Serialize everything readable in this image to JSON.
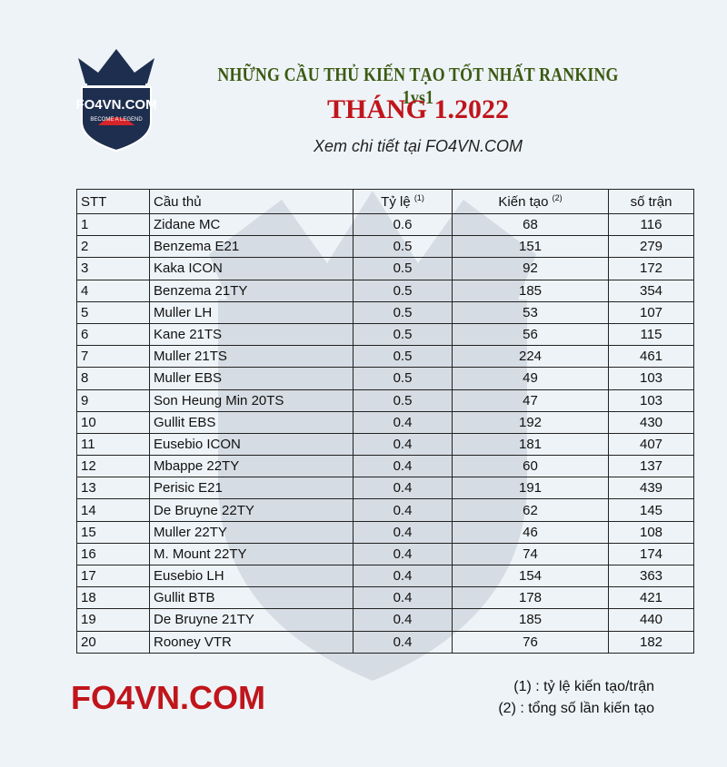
{
  "logo": {
    "brand": "FO4VN.COM",
    "tagline": "BECOME A LEGEND"
  },
  "header": {
    "title": "NHỮNG CẦU THỦ KIẾN TẠO TỐT NHẤT RANKING 1vs1",
    "month": "THÁNG 1.2022",
    "subtitle": "Xem chi tiết tại FO4VN.COM"
  },
  "table": {
    "columns": [
      {
        "label": "STT"
      },
      {
        "label": "Cầu thủ"
      },
      {
        "label": "Tỷ lệ",
        "note": "(1)"
      },
      {
        "label": "Kiến tạo",
        "note": "(2)"
      },
      {
        "label": "số trận"
      }
    ],
    "rows": [
      [
        1,
        "Zidane MC",
        0.6,
        68,
        116
      ],
      [
        2,
        "Benzema E21",
        0.5,
        151,
        279
      ],
      [
        3,
        "Kaka ICON",
        0.5,
        92,
        172
      ],
      [
        4,
        "Benzema 21TY",
        0.5,
        185,
        354
      ],
      [
        5,
        "Muller LH",
        0.5,
        53,
        107
      ],
      [
        6,
        "Kane 21TS",
        0.5,
        56,
        115
      ],
      [
        7,
        "Muller 21TS",
        0.5,
        224,
        461
      ],
      [
        8,
        "Muller EBS",
        0.5,
        49,
        103
      ],
      [
        9,
        "Son Heung Min 20TS",
        0.5,
        47,
        103
      ],
      [
        10,
        "Gullit EBS",
        0.4,
        192,
        430
      ],
      [
        11,
        "Eusebio ICON",
        0.4,
        181,
        407
      ],
      [
        12,
        "Mbappe 22TY",
        0.4,
        60,
        137
      ],
      [
        13,
        "Perisic E21",
        0.4,
        191,
        439
      ],
      [
        14,
        "De Bruyne 22TY",
        0.4,
        62,
        145
      ],
      [
        15,
        "Muller 22TY",
        0.4,
        46,
        108
      ],
      [
        16,
        "M. Mount 22TY",
        0.4,
        74,
        174
      ],
      [
        17,
        "Eusebio LH",
        0.4,
        154,
        363
      ],
      [
        18,
        "Gullit BTB",
        0.4,
        178,
        421
      ],
      [
        19,
        "De Bruyne 21TY",
        0.4,
        185,
        440
      ],
      [
        20,
        "Rooney VTR",
        0.4,
        76,
        182
      ]
    ]
  },
  "footer": {
    "brand": "FO4VN.COM",
    "notes": [
      "(1) : tỷ lệ kiến tạo/trận",
      "(2) : tổng số lần kiến tạo"
    ]
  }
}
